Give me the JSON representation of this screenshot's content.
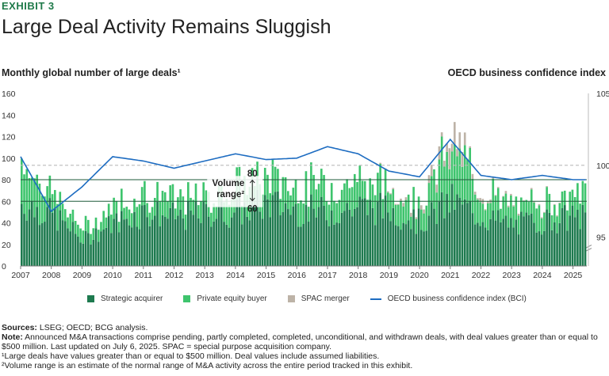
{
  "header": {
    "exhibit": "EXHIBIT 3",
    "title": "Large Deal Activity Remains Sluggish"
  },
  "axes_titles": {
    "left": "Monthly global number of large deals¹",
    "right": "OECD business confidence index"
  },
  "legend": {
    "strategic": "Strategic acquirer",
    "pe": "Private equity buyer",
    "spac": "SPAC merger",
    "bci": "OECD business confidence index (BCI)"
  },
  "annotation": {
    "top_value": "80",
    "bottom_value": "60",
    "label_line1": "Volume",
    "label_line2": "range²"
  },
  "footer": {
    "sources_label": "Sources:",
    "sources_text": " LSEG; OECD; BCG analysis.",
    "note_label": "Note:",
    "note_text": " Announced M&A transactions comprise pending, partly completed, completed, unconditional, and withdrawn deals, with deal values greater than or equal to $500 million. Last updated on July 6, 2025. SPAC = special purpose acquisition company.",
    "fn1": "¹Large deals have values greater than or equal to $500 million. Deal values include assumed liabilities.",
    "fn2": "²Volume range is an estimate of the normal range of M&A activity across the entire period tracked in this exhibit."
  },
  "colors": {
    "strategic": "#1e7a4f",
    "pe": "#3ec46d",
    "spac": "#bdb3a7",
    "bci": "#1d6cc1",
    "range": "#1e5a3a",
    "dashed": "#bbbbbb"
  },
  "chart_data": {
    "type": "bar",
    "stacked": true,
    "title": "Large Deal Activity Remains Sluggish",
    "ylabel": "Monthly global number of large deals",
    "y2label": "OECD business confidence index",
    "ylim": [
      0,
      160
    ],
    "y2lim": [
      93,
      105
    ],
    "y2_ticks": [
      95,
      100,
      105
    ],
    "y_ticks": [
      0,
      20,
      40,
      60,
      80,
      100,
      120,
      140,
      160
    ],
    "x_tick_labels": [
      "2007",
      "2008",
      "2009",
      "2010",
      "2011",
      "2012",
      "2013",
      "2014",
      "2015",
      "2016",
      "2017",
      "2018",
      "2019",
      "2020",
      "2021",
      "2022",
      "2023",
      "2024",
      "2025"
    ],
    "volume_range": [
      60,
      80
    ],
    "dashed_reference": 100,
    "annual_series": {
      "years": [
        2007,
        2008,
        2009,
        2010,
        2011,
        2012,
        2013,
        2014,
        2015,
        2016,
        2017,
        2018,
        2019,
        2020,
        2021,
        2022,
        2023,
        2024,
        2025
      ],
      "strategic_avg": [
        58,
        48,
        24,
        40,
        50,
        45,
        48,
        50,
        58,
        52,
        50,
        55,
        52,
        40,
        60,
        45,
        38,
        42,
        45
      ],
      "pe_avg": [
        40,
        20,
        10,
        15,
        20,
        15,
        17,
        22,
        25,
        22,
        25,
        25,
        20,
        18,
        50,
        25,
        15,
        20,
        20
      ],
      "spac_avg": [
        0,
        0,
        0,
        0,
        0,
        0,
        0,
        0,
        0,
        0,
        0,
        0,
        1,
        4,
        14,
        4,
        1,
        1,
        0
      ],
      "bci_end_of_year": [
        100.6,
        96.8,
        98.5,
        100.6,
        100.3,
        99.8,
        100.3,
        100.8,
        100.4,
        100.5,
        101.3,
        100.8,
        99.6,
        99.2,
        101.8,
        99.3,
        99.0,
        99.3,
        99.0
      ]
    }
  }
}
